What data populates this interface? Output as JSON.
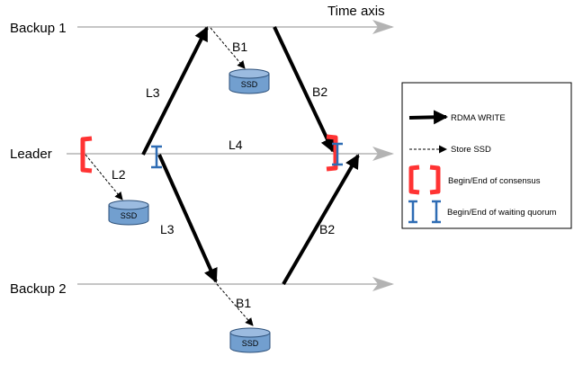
{
  "timelines": {
    "axis_label": "Time axis",
    "backup1": "Backup 1",
    "leader": "Leader",
    "backup2": "Backup 2"
  },
  "arrows": {
    "l3_up": "L3",
    "l3_down": "L3",
    "l4": "L4",
    "l2": "L2",
    "b1_top": "B1",
    "b1_bottom": "B1",
    "b2_top": "B2",
    "b2_bottom": "B2"
  },
  "storage": {
    "leader_ssd": "SSD",
    "backup1_ssd": "SSD",
    "backup2_ssd": "SSD"
  },
  "legend": {
    "rdma_write": "RDMA WRITE",
    "store_ssd": "Store SSD",
    "consensus": "Begin/End of  consensus",
    "quorum": "Begin/End of waiting quorum"
  },
  "colors": {
    "timeline": "#b3b3b3",
    "arrow": "#000000",
    "consensus_bracket": "#ff3333",
    "quorum_marker": "#2e6cb4",
    "ssd_fill": "#729fcf",
    "ssd_stroke": "#2a4e78"
  }
}
